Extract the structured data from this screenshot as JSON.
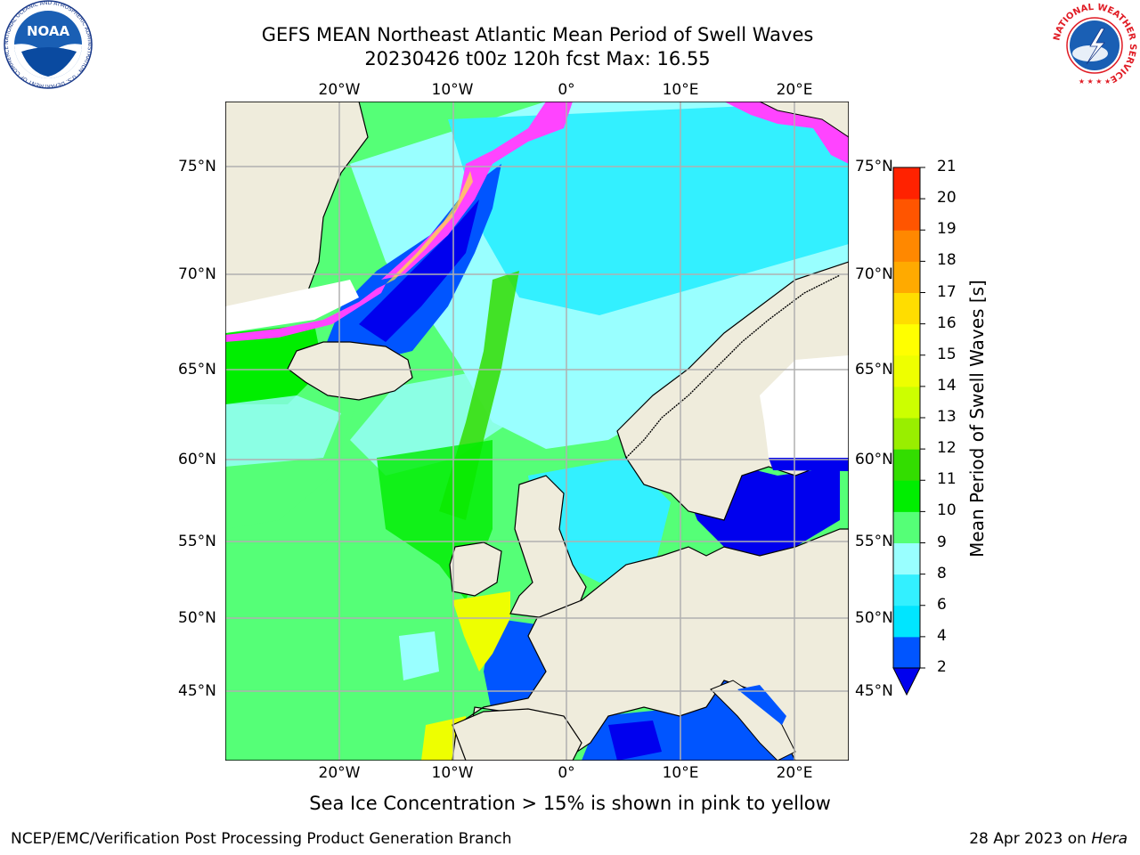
{
  "title_line1": "GEFS MEAN Northeast Atlantic Mean Period of Swell Waves",
  "title_line2": "20230426 t00z 120h fcst   Max: 16.55",
  "lon_labels": [
    "20°W",
    "10°W",
    "0°",
    "10°E",
    "20°E"
  ],
  "lat_labels": [
    "75°N",
    "70°N",
    "65°N",
    "60°N",
    "55°N",
    "50°N",
    "45°N"
  ],
  "colorbar": {
    "label": "Mean Period of Swell Waves [s]",
    "ticks": [
      "2",
      "4",
      "6",
      "8",
      "9",
      "10",
      "11",
      "12",
      "13",
      "14",
      "15",
      "16",
      "17",
      "18",
      "19",
      "20",
      "21"
    ],
    "colors": [
      "#0055ff",
      "#00e5ff",
      "#33f0ff",
      "#99ffff",
      "#55ff77",
      "#00ee00",
      "#33dd00",
      "#99ee00",
      "#ccff00",
      "#eeff00",
      "#ffff00",
      "#ffdd00",
      "#ffaa00",
      "#ff8800",
      "#ff5500",
      "#ff2200"
    ],
    "extend_color": "#0000ee"
  },
  "colors": {
    "land": "#efecdc",
    "grid": "#b0b0b0",
    "ice_pink": "#ff44ff",
    "ice_yellow": "#ffee33",
    "deep_blue": "#0000ee"
  },
  "caption": "Sea Ice Concentration > 15% is shown in pink to yellow",
  "footer_left": "NCEP/EMC/Verification Post Processing Product Generation Branch",
  "footer_right_prefix": "28 Apr 2023 on ",
  "footer_right_host": "Hera",
  "logos": {
    "noaa_text": "NOAA",
    "noaa_ring": "NATIONAL OCEANIC AND ATMOSPHERIC ADMINISTRATION · U.S. DEPARTMENT OF COMMERCE",
    "nws_ring": "NATIONAL WEATHER SERVICE"
  }
}
